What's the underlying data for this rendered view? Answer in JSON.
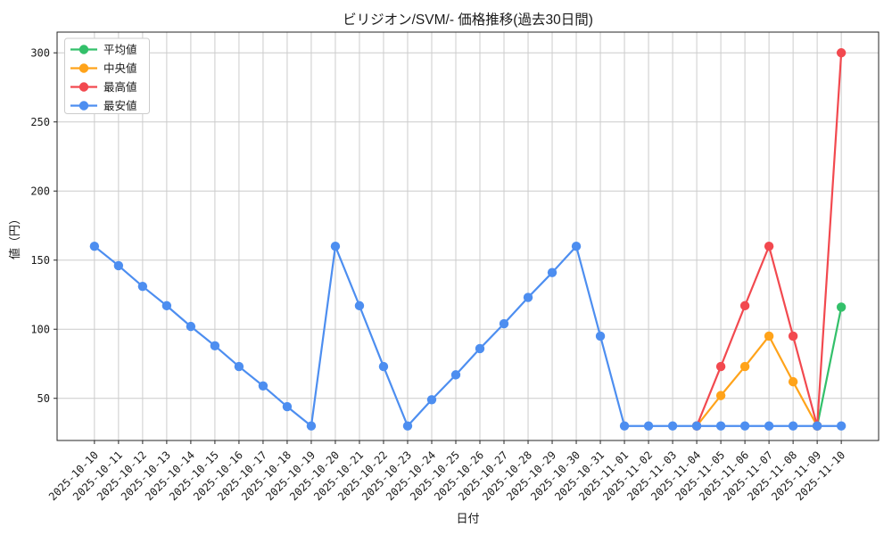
{
  "chart_data": {
    "type": "line",
    "title": "ビリジオン/SVM/- 価格推移(過去30日間)",
    "xlabel": "日付",
    "ylabel": "値（円）",
    "x": [
      "2025-10-10",
      "2025-10-11",
      "2025-10-12",
      "2025-10-13",
      "2025-10-14",
      "2025-10-15",
      "2025-10-16",
      "2025-10-17",
      "2025-10-18",
      "2025-10-19",
      "2025-10-20",
      "2025-10-21",
      "2025-10-22",
      "2025-10-23",
      "2025-10-24",
      "2025-10-25",
      "2025-10-26",
      "2025-10-27",
      "2025-10-28",
      "2025-10-29",
      "2025-10-30",
      "2025-10-31",
      "2025-11-01",
      "2025-11-02",
      "2025-11-03",
      "2025-11-04",
      "2025-11-05",
      "2025-11-06",
      "2025-11-07",
      "2025-11-08",
      "2025-11-09",
      "2025-11-10"
    ],
    "yticks": [
      50,
      100,
      150,
      200,
      250,
      300
    ],
    "ylim": [
      19.5,
      315
    ],
    "grid": true,
    "legend_position": "upper-left",
    "colors": {
      "grid": "#cccccc",
      "spine": "#262626",
      "text": "#1a1a1a",
      "background": "#ffffff",
      "legend_border": "#cccccc"
    },
    "series": [
      {
        "key": "avg",
        "name": "平均値",
        "color": "#33c06a",
        "values": [
          null,
          null,
          null,
          null,
          null,
          null,
          null,
          null,
          null,
          null,
          null,
          null,
          null,
          null,
          null,
          null,
          null,
          null,
          null,
          null,
          null,
          null,
          null,
          null,
          null,
          null,
          null,
          null,
          null,
          null,
          30,
          116
        ]
      },
      {
        "key": "median",
        "name": "中央値",
        "color": "#ffa31a",
        "values": [
          null,
          null,
          null,
          null,
          null,
          null,
          null,
          null,
          null,
          null,
          null,
          null,
          null,
          null,
          null,
          null,
          null,
          null,
          null,
          null,
          null,
          null,
          null,
          null,
          null,
          30,
          52,
          73,
          95,
          62,
          30,
          null
        ]
      },
      {
        "key": "max",
        "name": "最高値",
        "color": "#f2494f",
        "values": [
          null,
          null,
          null,
          null,
          null,
          null,
          null,
          null,
          null,
          null,
          null,
          null,
          null,
          null,
          null,
          null,
          null,
          null,
          null,
          null,
          null,
          null,
          null,
          null,
          null,
          30,
          73,
          117,
          160,
          95,
          30,
          300
        ]
      },
      {
        "key": "min",
        "name": "最安値",
        "color": "#4d8ef0",
        "values": [
          160,
          146,
          131,
          117,
          102,
          88,
          73,
          59,
          44,
          30,
          160,
          117,
          73,
          30,
          49,
          67,
          86,
          104,
          123,
          141,
          160,
          95,
          30,
          30,
          30,
          30,
          30,
          30,
          30,
          30,
          30,
          30
        ]
      }
    ]
  }
}
